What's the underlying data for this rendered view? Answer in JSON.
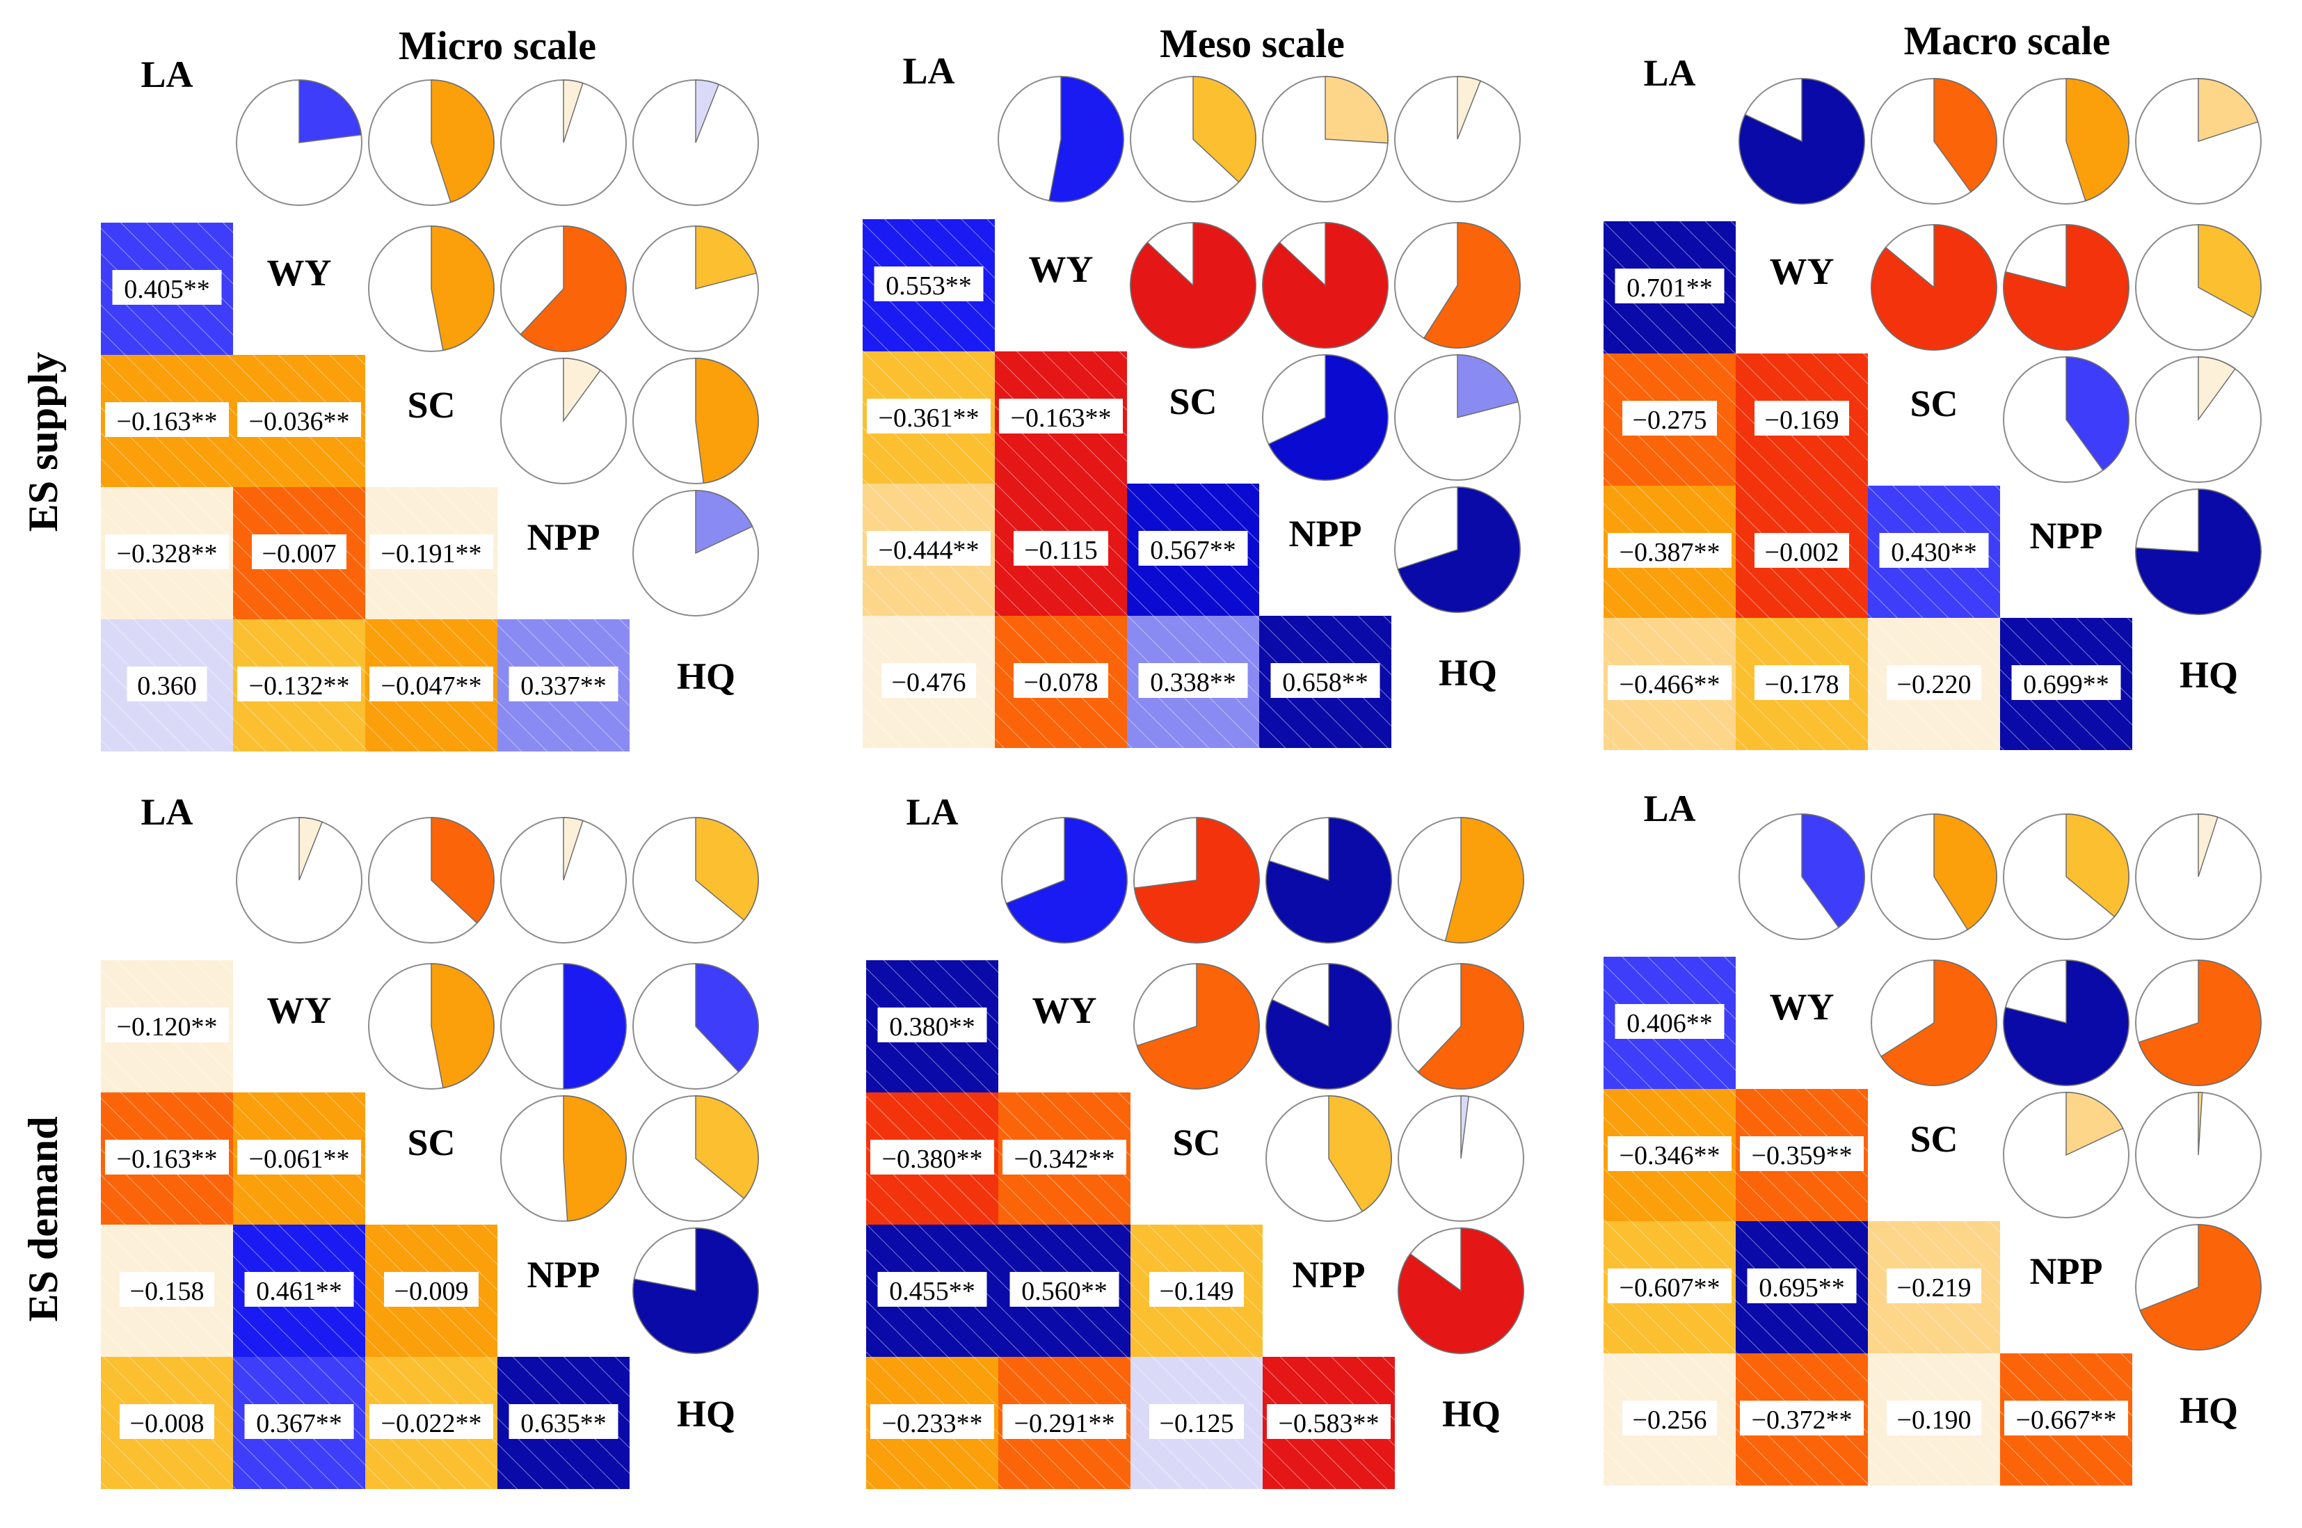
{
  "figure": {
    "columns": [
      {
        "key": "micro",
        "title": "Micro scale"
      },
      {
        "key": "meso",
        "title": "Meso scale"
      },
      {
        "key": "macro",
        "title": "Macro scale"
      }
    ],
    "rows": [
      {
        "key": "supply",
        "label": "ES supply"
      },
      {
        "key": "demand",
        "label": "ES demand"
      }
    ]
  },
  "chart_data": [
    {
      "type": "heatmap",
      "row": "ES supply",
      "scale": "Micro scale",
      "variables": [
        "LA",
        "WY",
        "SC",
        "NPP",
        "HQ"
      ],
      "lower_matrix": [
        [
          null,
          null,
          null,
          null,
          null
        ],
        [
          "0.405**",
          null,
          null,
          null,
          null
        ],
        [
          "−0.163**",
          "−0.036**",
          null,
          null,
          null
        ],
        [
          "−0.328**",
          "−0.007",
          "−0.191**",
          null,
          null
        ],
        [
          "0.360",
          "−0.132**",
          "−0.047**",
          "0.337**",
          null
        ]
      ],
      "lower_colors": [
        [
          null,
          null,
          null,
          null,
          null
        ],
        [
          "#3d3dfa",
          null,
          null,
          null,
          null
        ],
        [
          "#fb9f0a",
          "#fb9f0a",
          null,
          null,
          null
        ],
        [
          "#fdf0d9",
          "#fb6408",
          "#fdf0d9",
          null,
          null
        ],
        [
          "#dadaf8",
          "#fbbf30",
          "#fb9f0a",
          "#8a8af3",
          null
        ]
      ],
      "pie_rows": [
        [
          {
            "value": 0.23,
            "color": "#3d3dfa"
          },
          {
            "value": 0.45,
            "color": "#fb9f0a"
          },
          {
            "value": 0.05,
            "color": "#fdf0d9"
          },
          {
            "value": 0.06,
            "color": "#dadaf8"
          }
        ],
        [
          {
            "value": 0.47,
            "color": "#fb9f0a"
          },
          {
            "value": 0.62,
            "color": "#fb6408"
          },
          {
            "value": 0.21,
            "color": "#fbbf30"
          }
        ],
        [
          {
            "value": 0.1,
            "color": "#fdf0d9"
          },
          {
            "value": 0.48,
            "color": "#fb9f0a"
          }
        ],
        [
          {
            "value": 0.18,
            "color": "#8a8af3"
          }
        ]
      ]
    },
    {
      "type": "heatmap",
      "row": "ES supply",
      "scale": "Meso scale",
      "variables": [
        "LA",
        "WY",
        "SC",
        "NPP",
        "HQ"
      ],
      "lower_matrix": [
        [
          null,
          null,
          null,
          null,
          null
        ],
        [
          "0.553**",
          null,
          null,
          null,
          null
        ],
        [
          "−0.361**",
          "−0.163**",
          null,
          null,
          null
        ],
        [
          "−0.444**",
          "−0.115",
          "0.567**",
          null,
          null
        ],
        [
          "−0.476",
          "−0.078",
          "0.338**",
          "0.658**",
          null
        ]
      ],
      "lower_colors": [
        [
          null,
          null,
          null,
          null,
          null
        ],
        [
          "#1a1af2",
          null,
          null,
          null,
          null
        ],
        [
          "#fbbf30",
          "#e51616",
          null,
          null,
          null
        ],
        [
          "#fdd68a",
          "#e51616",
          "#0a0ad0",
          null,
          null
        ],
        [
          "#fdf0d9",
          "#fb6408",
          "#8a8af3",
          "#0a0aa8",
          null
        ]
      ],
      "pie_rows": [
        [
          {
            "value": 0.53,
            "color": "#1a1af2"
          },
          {
            "value": 0.37,
            "color": "#fbbf30"
          },
          {
            "value": 0.26,
            "color": "#fdd68a"
          },
          {
            "value": 0.06,
            "color": "#fdf0d9"
          }
        ],
        [
          {
            "value": 0.87,
            "color": "#e51616"
          },
          {
            "value": 0.87,
            "color": "#e51616"
          },
          {
            "value": 0.59,
            "color": "#fb6408"
          }
        ],
        [
          {
            "value": 0.68,
            "color": "#0a0ad0"
          },
          {
            "value": 0.21,
            "color": "#8a8af3"
          }
        ],
        [
          {
            "value": 0.7,
            "color": "#0a0aa8"
          }
        ]
      ]
    },
    {
      "type": "heatmap",
      "row": "ES supply",
      "scale": "Macro scale",
      "variables": [
        "LA",
        "WY",
        "SC",
        "NPP",
        "HQ"
      ],
      "lower_matrix": [
        [
          null,
          null,
          null,
          null,
          null
        ],
        [
          "0.701**",
          null,
          null,
          null,
          null
        ],
        [
          "−0.275",
          "−0.169",
          null,
          null,
          null
        ],
        [
          "−0.387**",
          "−0.002",
          "0.430**",
          null,
          null
        ],
        [
          "−0.466**",
          "−0.178",
          "−0.220",
          "0.699**",
          null
        ]
      ],
      "lower_colors": [
        [
          null,
          null,
          null,
          null,
          null
        ],
        [
          "#0a0aa8",
          null,
          null,
          null,
          null
        ],
        [
          "#fb6408",
          "#f3330b",
          null,
          null,
          null
        ],
        [
          "#fb9f0a",
          "#f3330b",
          "#3d3dfa",
          null,
          null
        ],
        [
          "#fdd68a",
          "#fbbf30",
          "#fdf0d9",
          "#0a0aa8",
          null
        ]
      ],
      "pie_rows": [
        [
          {
            "value": 0.82,
            "color": "#0a0aa8"
          },
          {
            "value": 0.4,
            "color": "#fb6408"
          },
          {
            "value": 0.45,
            "color": "#fb9f0a"
          },
          {
            "value": 0.2,
            "color": "#fdd68a"
          }
        ],
        [
          {
            "value": 0.86,
            "color": "#f3330b"
          },
          {
            "value": 0.79,
            "color": "#f3330b"
          },
          {
            "value": 0.33,
            "color": "#fbbf30"
          }
        ],
        [
          {
            "value": 0.4,
            "color": "#3d3dfa"
          },
          {
            "value": 0.1,
            "color": "#fdf0d9"
          }
        ],
        [
          {
            "value": 0.76,
            "color": "#0a0aa8"
          }
        ]
      ]
    },
    {
      "type": "heatmap",
      "row": "ES demand",
      "scale": "Micro scale",
      "variables": [
        "LA",
        "WY",
        "SC",
        "NPP",
        "HQ"
      ],
      "lower_matrix": [
        [
          null,
          null,
          null,
          null,
          null
        ],
        [
          "−0.120**",
          null,
          null,
          null,
          null
        ],
        [
          "−0.163**",
          "−0.061**",
          null,
          null,
          null
        ],
        [
          "−0.158",
          "0.461**",
          "−0.009",
          null,
          null
        ],
        [
          "−0.008",
          "0.367**",
          "−0.022**",
          "0.635**",
          null
        ]
      ],
      "lower_colors": [
        [
          null,
          null,
          null,
          null,
          null
        ],
        [
          "#fdf0d9",
          null,
          null,
          null,
          null
        ],
        [
          "#fb6408",
          "#fb9f0a",
          null,
          null,
          null
        ],
        [
          "#fdf0d9",
          "#1a1af2",
          "#fb9f0a",
          null,
          null
        ],
        [
          "#fbbf30",
          "#3d3dfa",
          "#fbbf30",
          "#0a0aa8",
          null
        ]
      ],
      "pie_rows": [
        [
          {
            "value": 0.06,
            "color": "#fdf0d9"
          },
          {
            "value": 0.37,
            "color": "#fb6408"
          },
          {
            "value": 0.05,
            "color": "#fdf0d9"
          },
          {
            "value": 0.36,
            "color": "#fbbf30"
          }
        ],
        [
          {
            "value": 0.47,
            "color": "#fb9f0a"
          },
          {
            "value": 0.5,
            "color": "#1a1af2"
          },
          {
            "value": 0.38,
            "color": "#3d3dfa"
          }
        ],
        [
          {
            "value": 0.49,
            "color": "#fb9f0a"
          },
          {
            "value": 0.36,
            "color": "#fbbf30"
          }
        ],
        [
          {
            "value": 0.78,
            "color": "#0a0aa8"
          }
        ]
      ]
    },
    {
      "type": "heatmap",
      "row": "ES demand",
      "scale": "Meso scale",
      "variables": [
        "LA",
        "WY",
        "SC",
        "NPP",
        "HQ"
      ],
      "lower_matrix": [
        [
          null,
          null,
          null,
          null,
          null
        ],
        [
          "0.380**",
          null,
          null,
          null,
          null
        ],
        [
          "−0.380**",
          "−0.342**",
          null,
          null,
          null
        ],
        [
          "0.455**",
          "0.560**",
          "−0.149",
          null,
          null
        ],
        [
          "−0.233**",
          "−0.291**",
          "−0.125",
          "−0.583**",
          null
        ]
      ],
      "lower_colors": [
        [
          null,
          null,
          null,
          null,
          null
        ],
        [
          "#0a0aa8",
          null,
          null,
          null,
          null
        ],
        [
          "#f3330b",
          "#fb6408",
          null,
          null,
          null
        ],
        [
          "#0a0aa8",
          "#0a0aa8",
          "#fbbf30",
          null,
          null
        ],
        [
          "#fb9f0a",
          "#fb6408",
          "#dadaf8",
          "#e51616",
          null
        ]
      ],
      "pie_rows": [
        [
          {
            "value": 0.69,
            "color": "#1a1af2"
          },
          {
            "value": 0.73,
            "color": "#f3330b"
          },
          {
            "value": 0.8,
            "color": "#0a0aa8"
          },
          {
            "value": 0.54,
            "color": "#fb9f0a"
          }
        ],
        [
          {
            "value": 0.7,
            "color": "#fb6408"
          },
          {
            "value": 0.82,
            "color": "#0a0aa8"
          },
          {
            "value": 0.62,
            "color": "#fb6408"
          }
        ],
        [
          {
            "value": 0.41,
            "color": "#fbbf30"
          },
          {
            "value": 0.02,
            "color": "#dadaf8"
          }
        ],
        [
          {
            "value": 0.85,
            "color": "#e51616"
          }
        ]
      ]
    },
    {
      "type": "heatmap",
      "row": "ES demand",
      "scale": "Macro scale",
      "variables": [
        "LA",
        "WY",
        "SC",
        "NPP",
        "HQ"
      ],
      "lower_matrix": [
        [
          null,
          null,
          null,
          null,
          null
        ],
        [
          "0.406**",
          null,
          null,
          null,
          null
        ],
        [
          "−0.346**",
          "−0.359**",
          null,
          null,
          null
        ],
        [
          "−0.607**",
          "0.695**",
          "−0.219",
          null,
          null
        ],
        [
          "−0.256",
          "−0.372**",
          "−0.190",
          "−0.667**",
          null
        ]
      ],
      "lower_colors": [
        [
          null,
          null,
          null,
          null,
          null
        ],
        [
          "#3d3dfa",
          null,
          null,
          null,
          null
        ],
        [
          "#fb9f0a",
          "#fb6408",
          null,
          null,
          null
        ],
        [
          "#fbbf30",
          "#0a0aa8",
          "#fdd68a",
          null,
          null
        ],
        [
          "#fdf0d9",
          "#fb6408",
          "#fdf0d9",
          "#fb6408",
          null
        ]
      ],
      "pie_rows": [
        [
          {
            "value": 0.4,
            "color": "#3d3dfa"
          },
          {
            "value": 0.41,
            "color": "#fb9f0a"
          },
          {
            "value": 0.36,
            "color": "#fbbf30"
          },
          {
            "value": 0.05,
            "color": "#fdf0d9"
          }
        ],
        [
          {
            "value": 0.66,
            "color": "#fb6408"
          },
          {
            "value": 0.79,
            "color": "#0a0aa8"
          },
          {
            "value": 0.7,
            "color": "#fb6408"
          }
        ],
        [
          {
            "value": 0.18,
            "color": "#fdd68a"
          },
          {
            "value": 0.01,
            "color": "#fdd68a"
          }
        ],
        [
          {
            "value": 0.69,
            "color": "#fb6408"
          }
        ]
      ]
    }
  ]
}
